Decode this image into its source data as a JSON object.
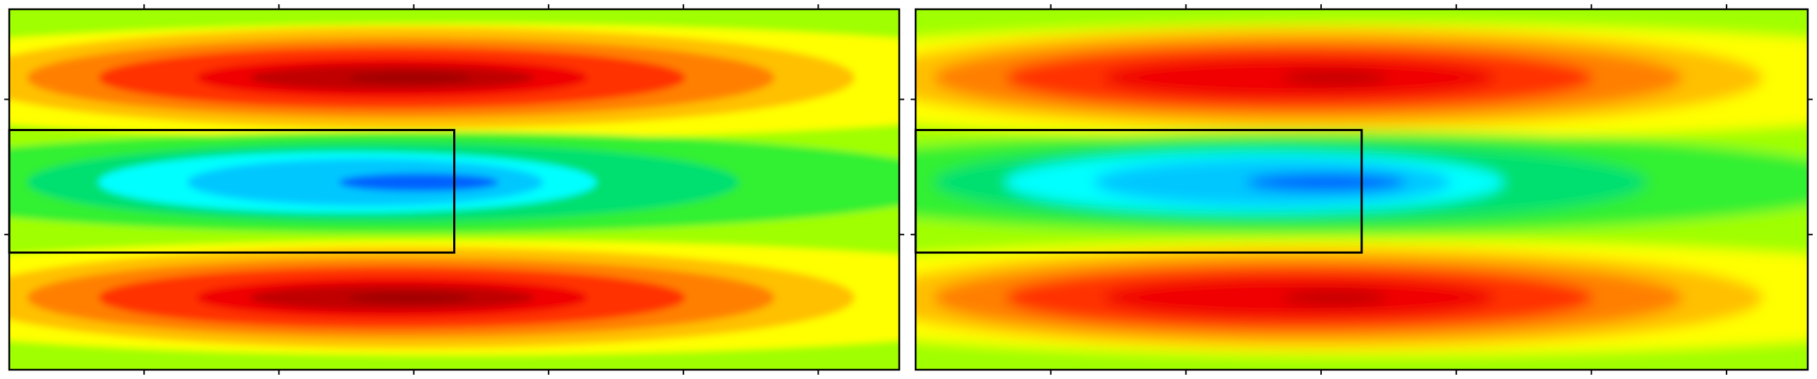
{
  "chart_data": [
    {
      "type": "contour",
      "colors": [
        "#0000c0",
        "#0060ff",
        "#00c8ff",
        "#00ffff",
        "#00e070",
        "#30f030",
        "#a0ff00",
        "#ffff00",
        "#ffc000",
        "#ff8000",
        "#ff3000",
        "#f00000",
        "#c00000",
        "#a00000"
      ]
    },
    {
      "type": "contour",
      "colors": [
        "#0000c0",
        "#0060ff",
        "#00c8ff",
        "#00ffff",
        "#00e070",
        "#30f030",
        "#a0ff00",
        "#ffff00",
        "#ffc000",
        "#ff8000",
        "#ff3000",
        "#f00000",
        "#c00000",
        "#a00000"
      ]
    }
  ]
}
